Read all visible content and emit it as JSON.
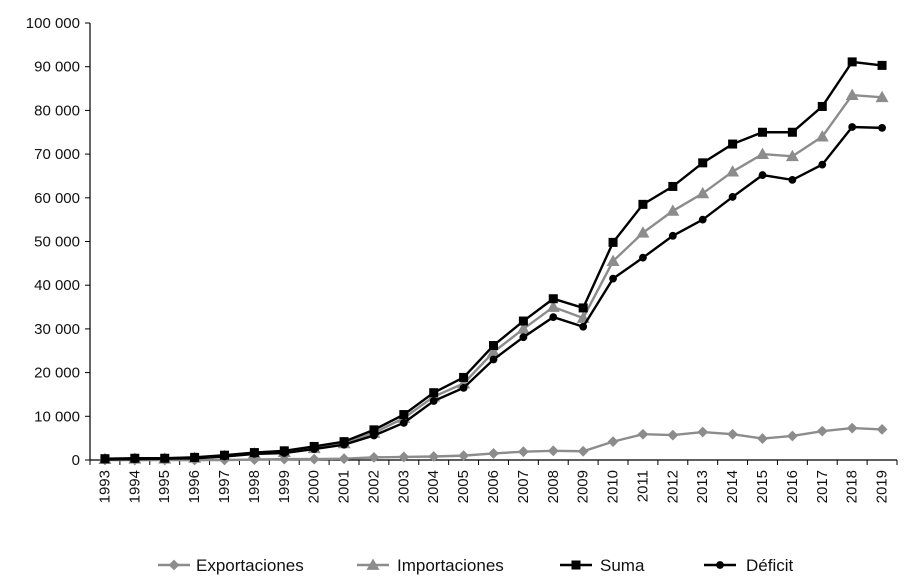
{
  "chart_data": {
    "type": "line",
    "title": "",
    "xlabel": "",
    "ylabel": "",
    "x": [
      "1993",
      "1994",
      "1995",
      "1996",
      "1997",
      "1998",
      "1999",
      "2000",
      "2001",
      "2002",
      "2003",
      "2004",
      "2005",
      "2006",
      "2007",
      "2008",
      "2009",
      "2010",
      "2011",
      "2012",
      "2013",
      "2014",
      "2015",
      "2016",
      "2017",
      "2018",
      "2019"
    ],
    "ylim": [
      0,
      100000
    ],
    "yticks": [
      0,
      10000,
      20000,
      30000,
      40000,
      50000,
      60000,
      70000,
      80000,
      90000,
      100000
    ],
    "ytick_labels": [
      "0",
      "10 000",
      "20 000",
      "30 000",
      "40 000",
      "50 000",
      "60 000",
      "70 000",
      "80 000",
      "90 000",
      "100 000"
    ],
    "grid": false,
    "legend_position": "bottom",
    "series": [
      {
        "name": "Exportaciones",
        "marker": "diamond",
        "color": "#8c8c8c",
        "values": [
          0,
          0,
          0,
          0,
          0,
          100,
          200,
          200,
          300,
          600,
          700,
          800,
          1000,
          1500,
          1900,
          2100,
          2000,
          4200,
          5900,
          5700,
          6400,
          5900,
          4900,
          5500,
          6600,
          7300,
          7000
        ]
      },
      {
        "name": "Importaciones",
        "marker": "triangle",
        "color": "#8c8c8c",
        "values": [
          200,
          300,
          300,
          500,
          900,
          1500,
          1800,
          2700,
          3800,
          6200,
          9600,
          14500,
          17500,
          24700,
          30000,
          35000,
          32500,
          45500,
          52000,
          57000,
          61000,
          66000,
          70000,
          69500,
          74000,
          83500,
          83000
        ]
      },
      {
        "name": "Suma",
        "marker": "square",
        "color": "#000000",
        "values": [
          300,
          400,
          400,
          600,
          1100,
          1700,
          2100,
          3100,
          4200,
          6900,
          10400,
          15400,
          18900,
          26200,
          31800,
          36900,
          34800,
          49800,
          58500,
          62600,
          68000,
          72300,
          75000,
          75000,
          80900,
          91100,
          90300
        ]
      },
      {
        "name": "Déficit",
        "marker": "circle",
        "color": "#000000",
        "values": [
          100,
          200,
          300,
          400,
          800,
          1400,
          1600,
          2500,
          3500,
          5600,
          8500,
          13500,
          16500,
          23000,
          28100,
          32700,
          30500,
          41500,
          46300,
          51300,
          55000,
          60200,
          65200,
          64100,
          67600,
          76200,
          76000
        ]
      }
    ]
  }
}
